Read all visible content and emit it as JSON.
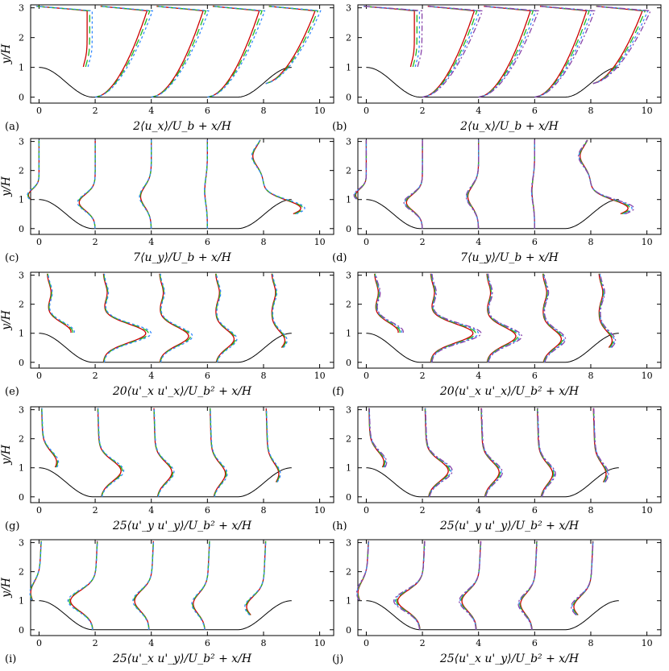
{
  "chart_data": [
    {
      "type": "line",
      "panel": "(a)",
      "xlabel": "2⟨u_x⟩/U_b + x/H",
      "ylabel": "y/H",
      "xlim": [
        -0.3,
        10.5
      ],
      "ylim": [
        -0.2,
        3.1
      ],
      "xticks": [
        0,
        2,
        4,
        6,
        8,
        10
      ],
      "yticks": [
        0,
        1,
        2,
        3
      ],
      "profile_stations": [
        0,
        2,
        4,
        6,
        8
      ],
      "profile": "ux"
    },
    {
      "type": "line",
      "panel": "(b)",
      "xlabel": "2⟨u_x⟩/U_b + x/H",
      "ylabel": "",
      "xlim": [
        -0.3,
        10.5
      ],
      "ylim": [
        -0.2,
        3.1
      ],
      "xticks": [
        0,
        2,
        4,
        6,
        8,
        10
      ],
      "yticks": [
        0,
        1,
        2,
        3
      ],
      "profile_stations": [
        0,
        2,
        4,
        6,
        8
      ],
      "profile": "ux"
    },
    {
      "type": "line",
      "panel": "(c)",
      "xlabel": "7⟨u_y⟩/U_b + x/H",
      "ylabel": "y/H",
      "xlim": [
        -0.3,
        10.5
      ],
      "ylim": [
        -0.2,
        3.1
      ],
      "xticks": [
        0,
        2,
        4,
        6,
        8,
        10
      ],
      "yticks": [
        0,
        1,
        2,
        3
      ],
      "profile_stations": [
        0,
        2,
        4,
        6,
        8
      ],
      "profile": "uy"
    },
    {
      "type": "line",
      "panel": "(d)",
      "xlabel": "7⟨u_y⟩/U_b + x/H",
      "ylabel": "",
      "xlim": [
        -0.3,
        10.5
      ],
      "ylim": [
        -0.2,
        3.1
      ],
      "xticks": [
        0,
        2,
        4,
        6,
        8,
        10
      ],
      "yticks": [
        0,
        1,
        2,
        3
      ],
      "profile_stations": [
        0,
        2,
        4,
        6,
        8
      ],
      "profile": "uy"
    },
    {
      "type": "line",
      "panel": "(e)",
      "xlabel": "20⟨u'_x u'_x⟩/U_b² + x/H",
      "ylabel": "y/H",
      "xlim": [
        -0.3,
        10.5
      ],
      "ylim": [
        -0.2,
        3.1
      ],
      "xticks": [
        0,
        2,
        4,
        6,
        8,
        10
      ],
      "yticks": [
        0,
        1,
        2,
        3
      ],
      "profile_stations": [
        0,
        2,
        4,
        6,
        8
      ],
      "profile": "uxux"
    },
    {
      "type": "line",
      "panel": "(f)",
      "xlabel": "20⟨u'_x u'_x⟩/U_b² + x/H",
      "ylabel": "",
      "xlim": [
        -0.3,
        10.5
      ],
      "ylim": [
        -0.2,
        3.1
      ],
      "xticks": [
        0,
        2,
        4,
        6,
        8,
        10
      ],
      "yticks": [
        0,
        1,
        2,
        3
      ],
      "profile_stations": [
        0,
        2,
        4,
        6,
        8
      ],
      "profile": "uxux"
    },
    {
      "type": "line",
      "panel": "(g)",
      "xlabel": "25⟨u'_y u'_y⟩/U_b² + x/H",
      "ylabel": "y/H",
      "xlim": [
        -0.3,
        10.5
      ],
      "ylim": [
        -0.2,
        3.1
      ],
      "xticks": [
        0,
        2,
        4,
        6,
        8,
        10
      ],
      "yticks": [
        0,
        1,
        2,
        3
      ],
      "profile_stations": [
        0,
        2,
        4,
        6,
        8
      ],
      "profile": "uyuy"
    },
    {
      "type": "line",
      "panel": "(h)",
      "xlabel": "25⟨u'_y u'_y⟩/U_b² + x/H",
      "ylabel": "",
      "xlim": [
        -0.3,
        10.5
      ],
      "ylim": [
        -0.2,
        3.1
      ],
      "xticks": [
        0,
        2,
        4,
        6,
        8,
        10
      ],
      "yticks": [
        0,
        1,
        2,
        3
      ],
      "profile_stations": [
        0,
        2,
        4,
        6,
        8
      ],
      "profile": "uyuy"
    },
    {
      "type": "line",
      "panel": "(i)",
      "xlabel": "25⟨u'_x u'_y⟩/U_b² + x/H",
      "ylabel": "y/H",
      "xlim": [
        -0.3,
        10.5
      ],
      "ylim": [
        -0.2,
        3.1
      ],
      "xticks": [
        0,
        2,
        4,
        6,
        8,
        10
      ],
      "yticks": [
        0,
        1,
        2,
        3
      ],
      "profile_stations": [
        0,
        2,
        4,
        6,
        8
      ],
      "profile": "uxuy"
    },
    {
      "type": "line",
      "panel": "(j)",
      "xlabel": "25⟨u'_x u'_y⟩/U_b² + x/H",
      "ylabel": "",
      "xlim": [
        -0.3,
        10.5
      ],
      "ylim": [
        -0.2,
        3.1
      ],
      "xticks": [
        0,
        2,
        4,
        6,
        8,
        10
      ],
      "yticks": [
        0,
        1,
        2,
        3
      ],
      "profile_stations": [
        0,
        2,
        4,
        6,
        8
      ],
      "profile": "uxuy"
    }
  ],
  "series_styles": {
    "left": [
      {
        "color": "#cc0000",
        "dash": ""
      },
      {
        "color": "#22bb22",
        "dash": "9,5"
      },
      {
        "color": "#3388ff",
        "dash": "3,3"
      }
    ],
    "right": [
      {
        "color": "#cc0000",
        "dash": ""
      },
      {
        "color": "#22bb22",
        "dash": "9,5"
      },
      {
        "color": "#3388ff",
        "dash": "3,3"
      },
      {
        "color": "#8844aa",
        "dash": "7,3,2,3"
      }
    ]
  },
  "hill_color": "#000000"
}
